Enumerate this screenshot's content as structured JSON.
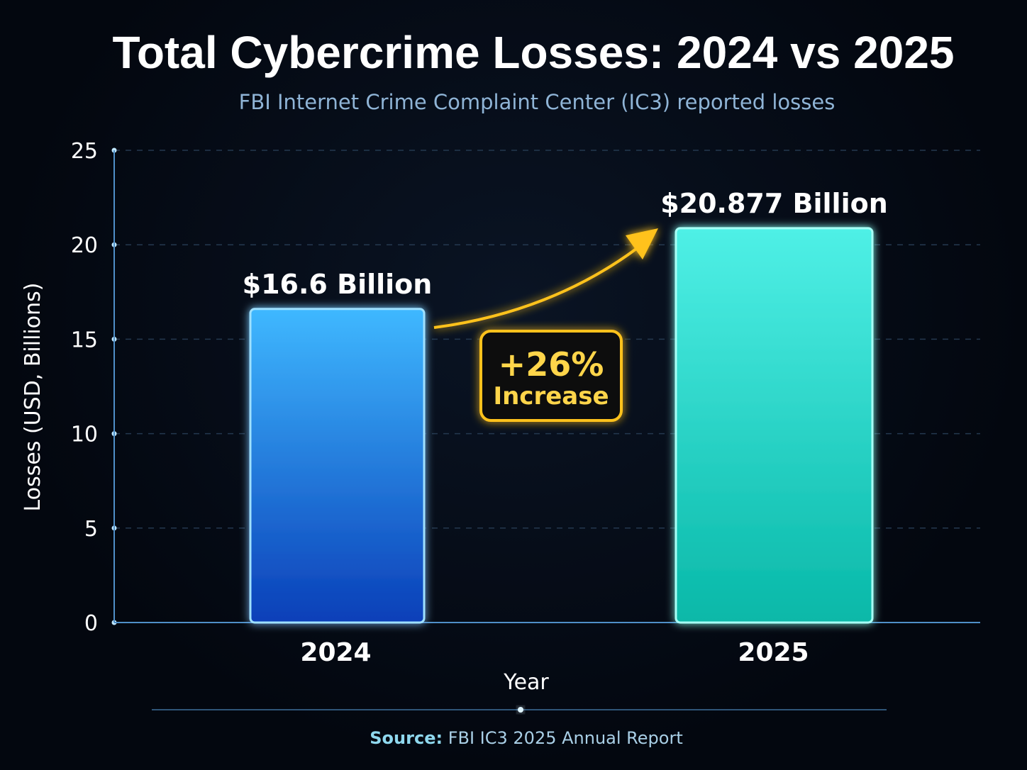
{
  "chart_data": {
    "type": "bar",
    "title": "Total Cybercrime Losses: 2024 vs 2025",
    "subtitle": "FBI Internet Crime Complaint Center (IC3) reported losses",
    "xlabel": "Year",
    "ylabel": "Losses (USD, Billions)",
    "ylim": [
      0,
      25
    ],
    "yticks": [
      "0",
      "5",
      "10",
      "15",
      "20",
      "25"
    ],
    "grid": true,
    "categories": [
      "2024",
      "2025"
    ],
    "values": [
      16.6,
      20.877
    ],
    "data_labels": [
      "$16.6 Billion",
      "$20.877 Billion"
    ],
    "bar_colors": [
      "#1e7bf0",
      "#2ee0d0"
    ],
    "annotation": {
      "line1": "+26%",
      "line2": "Increase",
      "color": "#ffc21a"
    },
    "source": {
      "label": "Source:",
      "text": "FBI IC3 2025 Annual Report"
    }
  }
}
